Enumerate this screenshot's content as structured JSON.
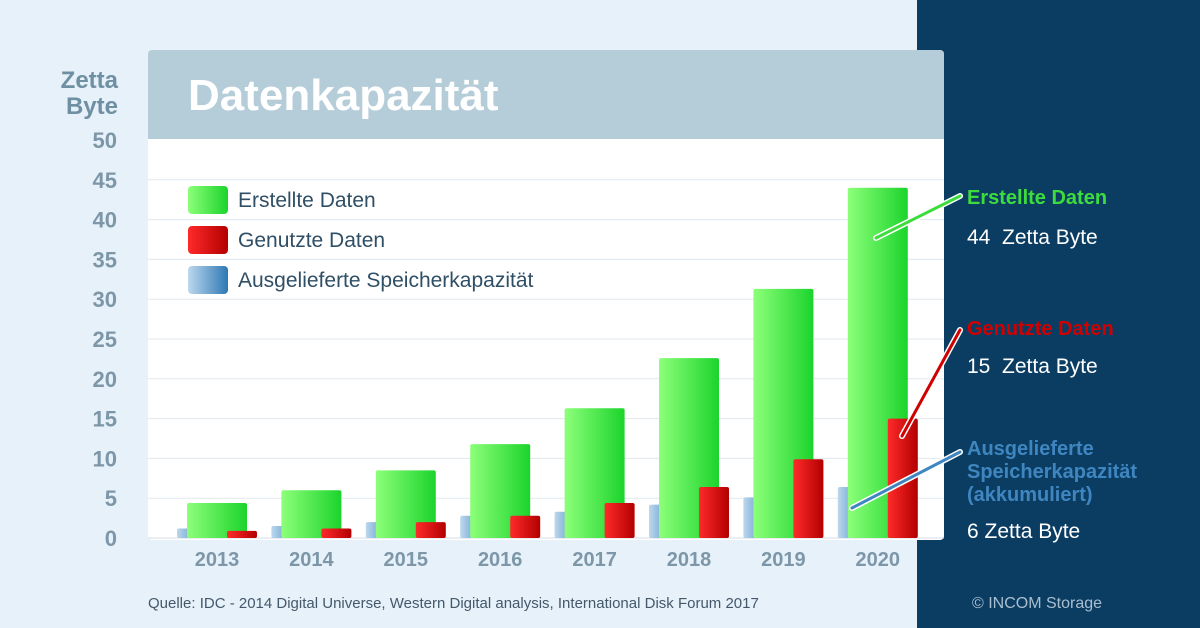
{
  "colors": {
    "created": "#3ddc3d",
    "used": "#d10000",
    "storage": "#3f86c0"
  },
  "title": "Datenkapazität",
  "source": "Quelle: IDC - 2014 Digital Universe, Western Digital analysis, International Disk Forum 2017",
  "copyright": "© INCOM Storage",
  "callouts": {
    "created": {
      "title": "Erstellte Daten",
      "value": "44  Zetta Byte"
    },
    "used": {
      "title": "Genutzte Daten",
      "value": "15  Zetta Byte"
    },
    "storage": {
      "title": "Ausgelieferte Speicherkapazität (akkumuliert)",
      "value": "6 Zetta Byte"
    }
  },
  "chart_data": {
    "type": "bar",
    "title": "Datenkapazität",
    "ylabel": "Zetta Byte",
    "ylabel_lines": [
      "Zetta",
      "Byte"
    ],
    "ylim": [
      0,
      50
    ],
    "yticks": [
      0,
      5,
      10,
      15,
      20,
      25,
      30,
      35,
      40,
      45,
      50
    ],
    "grid": true,
    "legend_position": "top-left",
    "categories": [
      "2013",
      "2014",
      "2015",
      "2016",
      "2017",
      "2018",
      "2019",
      "2020"
    ],
    "series": [
      {
        "name": "Erstellte Daten",
        "values": [
          4.4,
          6.0,
          8.5,
          11.8,
          16.3,
          22.6,
          31.3,
          44
        ]
      },
      {
        "name": "Genutzte Daten",
        "values": [
          0.9,
          1.2,
          2.0,
          2.8,
          4.4,
          6.4,
          9.9,
          15
        ]
      },
      {
        "name": "Ausgelieferte Speicherkapazität",
        "values": [
          1.2,
          1.5,
          2.0,
          2.8,
          3.3,
          4.2,
          5.1,
          6.4
        ]
      }
    ]
  }
}
